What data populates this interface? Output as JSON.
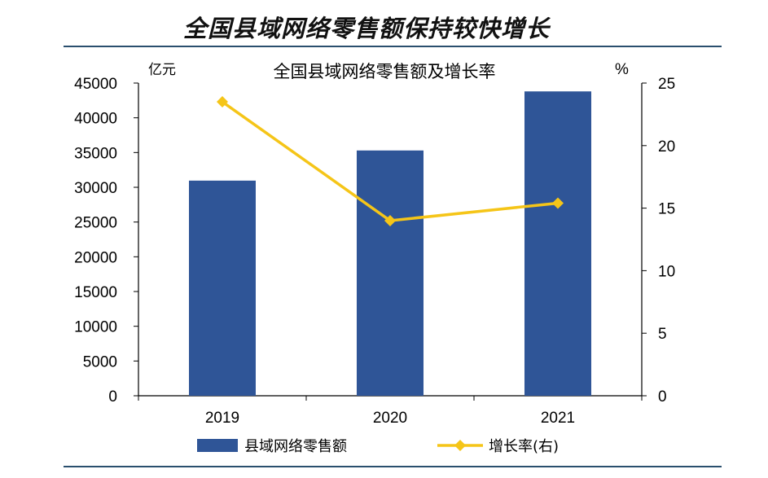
{
  "page": {
    "title": "全国县域网络零售额保持较快增长"
  },
  "chart_data": {
    "type": "bar",
    "title": "全国县域网络零售额及增长率",
    "categories": [
      "2019",
      "2020",
      "2021"
    ],
    "series": [
      {
        "name": "县域网络零售额",
        "type": "bar",
        "axis": "left",
        "color": "#2f5597",
        "values": [
          30960,
          35300,
          43800
        ]
      },
      {
        "name": "增长率(右)",
        "type": "line",
        "axis": "right",
        "color": "#f5c518",
        "values": [
          23.5,
          14.0,
          15.4
        ]
      }
    ],
    "y_left": {
      "unit": "亿元",
      "ylim": [
        0,
        45000
      ],
      "ticks": [
        0,
        5000,
        10000,
        15000,
        20000,
        25000,
        30000,
        35000,
        40000,
        45000
      ]
    },
    "y_right": {
      "unit": "%",
      "ylim": [
        0,
        25
      ],
      "ticks": [
        0,
        5,
        10,
        15,
        20,
        25
      ]
    },
    "legend": "bottom",
    "grid": false
  }
}
